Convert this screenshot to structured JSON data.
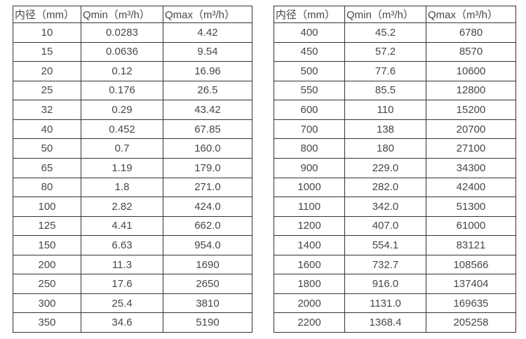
{
  "colors": {
    "border": "#333333",
    "text": "#474747",
    "background": "#ffffff"
  },
  "tables": [
    {
      "name": "flow-table-left",
      "headers": [
        "内径（mm）",
        "Qmin（m³/h）",
        "Qmax（m³/h）"
      ],
      "rows": [
        [
          "10",
          "0.0283",
          "4.42"
        ],
        [
          "15",
          "0.0636",
          "9.54"
        ],
        [
          "20",
          "0.12",
          "16.96"
        ],
        [
          "25",
          "0.176",
          "26.5"
        ],
        [
          "32",
          "0.29",
          "43.42"
        ],
        [
          "40",
          "0.452",
          "67.85"
        ],
        [
          "50",
          "0.7",
          "160.0"
        ],
        [
          "65",
          "1.19",
          "179.0"
        ],
        [
          "80",
          "1.8",
          "271.0"
        ],
        [
          "100",
          "2.82",
          "424.0"
        ],
        [
          "125",
          "4.41",
          "662.0"
        ],
        [
          "150",
          "6.63",
          "954.0"
        ],
        [
          "200",
          "11.3",
          "1690"
        ],
        [
          "250",
          "17.6",
          "2650"
        ],
        [
          "300",
          "25.4",
          "3810"
        ],
        [
          "350",
          "34.6",
          "5190"
        ]
      ]
    },
    {
      "name": "flow-table-right",
      "headers": [
        "内径（mm）",
        "Qmin（m³/h）",
        "Qmax（m³/h）"
      ],
      "rows": [
        [
          "400",
          "45.2",
          "6780"
        ],
        [
          "450",
          "57.2",
          "8570"
        ],
        [
          "500",
          "77.6",
          "10600"
        ],
        [
          "550",
          "85.5",
          "12800"
        ],
        [
          "600",
          "110",
          "15200"
        ],
        [
          "700",
          "138",
          "20700"
        ],
        [
          "800",
          "180",
          "27100"
        ],
        [
          "900",
          "229.0",
          "34300"
        ],
        [
          "1000",
          "282.0",
          "42400"
        ],
        [
          "1100",
          "342.0",
          "51300"
        ],
        [
          "1200",
          "407.0",
          "61000"
        ],
        [
          "1400",
          "554.1",
          "83121"
        ],
        [
          "1600",
          "732.7",
          "108566"
        ],
        [
          "1800",
          "916.0",
          "137404"
        ],
        [
          "2000",
          "1131.0",
          "169635"
        ],
        [
          "2200",
          "1368.4",
          "205258"
        ]
      ]
    }
  ]
}
